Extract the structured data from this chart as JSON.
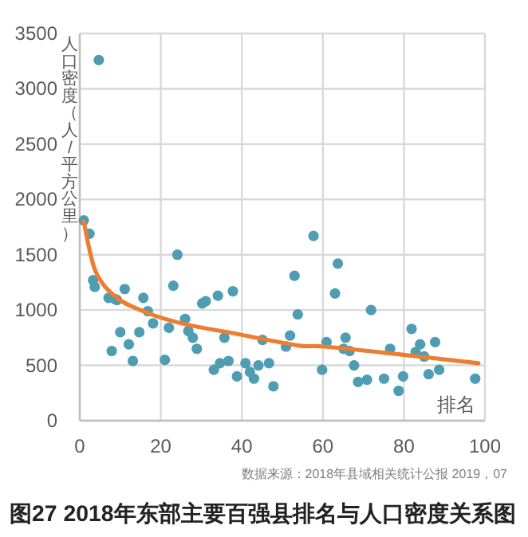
{
  "chart_data": {
    "type": "scatter",
    "title": "图27 2018年东部主要百强县排名与人口密度关系图",
    "xlabel": "排名",
    "ylabel": "人口密度（人/平方公里）",
    "annotations": [
      "数据来源：2018年县域相关统计公报 2019，07"
    ],
    "xlim": [
      0,
      100
    ],
    "xticks": [
      0,
      20,
      40,
      60,
      80,
      100
    ],
    "ylim": [
      0,
      3500
    ],
    "yticks": [
      0,
      500,
      1000,
      1500,
      2000,
      2500,
      3000,
      3500
    ],
    "grid": true,
    "series": [
      {
        "marker": "circle",
        "color": "#4e9db3",
        "x": [
          1,
          2.4,
          3.3,
          3.7,
          4.7,
          7.1,
          7.9,
          8.7,
          9.2,
          10,
          11.1,
          12.1,
          13.1,
          14.7,
          15.7,
          16.8,
          18.1,
          21,
          22,
          23.1,
          24.1,
          26,
          26.8,
          27.9,
          28.9,
          30.2,
          31.1,
          33.1,
          34.1,
          34.6,
          35.7,
          36.7,
          37.8,
          38.8,
          40.9,
          42,
          43,
          44.1,
          45.1,
          46.7,
          47.8,
          50.9,
          51.9,
          53,
          53.8,
          57.7,
          59.8,
          60.9,
          63,
          63.7,
          65.1,
          65.6,
          66.6,
          67.7,
          68.7,
          70.9,
          71.9,
          75.1,
          76.6,
          78.7,
          79.8,
          81.9,
          82.9,
          84,
          85,
          86.1,
          87.7,
          88.7,
          97.6
        ],
        "values": [
          1810,
          1690,
          1270,
          1210,
          3260,
          1110,
          630,
          1100,
          1090,
          800,
          1190,
          690,
          540,
          800,
          1110,
          990,
          880,
          550,
          840,
          1220,
          1500,
          920,
          810,
          750,
          650,
          1060,
          1080,
          460,
          1130,
          520,
          750,
          540,
          1170,
          400,
          520,
          440,
          380,
          500,
          730,
          520,
          310,
          670,
          770,
          1310,
          960,
          1670,
          460,
          710,
          1150,
          1420,
          650,
          750,
          630,
          500,
          350,
          370,
          1000,
          380,
          650,
          270,
          400,
          830,
          620,
          690,
          580,
          420,
          710,
          460,
          380
        ]
      },
      {
        "type": "line",
        "color": "#ed7d31",
        "x": [
          1,
          3.9,
          9.2,
          17,
          26.3,
          39.4,
          53.8,
          60.4,
          78.7,
          98.4
        ],
        "values": [
          1800,
          1350,
          1110,
          970,
          870,
          780,
          680,
          670,
          600,
          520
        ]
      }
    ]
  }
}
